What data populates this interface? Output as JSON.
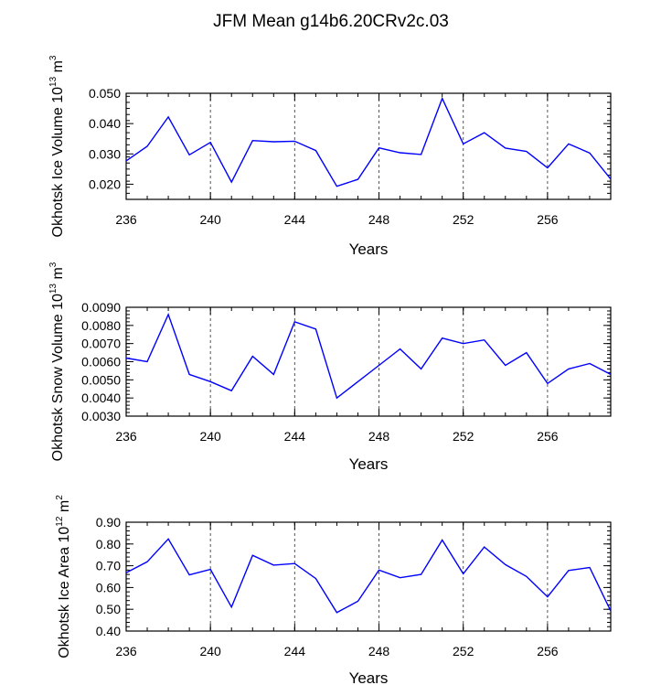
{
  "figure": {
    "title": "JFM Mean g14b6.20CRv2c.03",
    "colors": {
      "line": "#0000ff",
      "axes": "#000000",
      "grid": "#555555",
      "background": "#ffffff"
    }
  },
  "chart_data": [
    {
      "type": "line",
      "title": "JFM Mean g14b6.20CRv2c.03",
      "xlabel": "Years",
      "ylabel": {
        "text": "Okhotsk Ice Volume 10",
        "exp": "13",
        "unit": " m",
        "unit_exp": "3"
      },
      "xlim": [
        236,
        259
      ],
      "ylim": [
        0.015,
        0.05
      ],
      "xticks": [
        "236",
        "240",
        "244",
        "248",
        "252",
        "256"
      ],
      "yticks": [
        "0.020",
        "0.030",
        "0.040",
        "0.050"
      ],
      "x": [
        236,
        237,
        238,
        239,
        240,
        241,
        242,
        243,
        244,
        245,
        246,
        247,
        248,
        249,
        250,
        251,
        252,
        253,
        254,
        255,
        256,
        257,
        258,
        259
      ],
      "series": [
        {
          "name": "Okhotsk Ice Volume",
          "values": [
            0.0277,
            0.0325,
            0.0422,
            0.0297,
            0.0338,
            0.0207,
            0.0344,
            0.034,
            0.0342,
            0.0311,
            0.0193,
            0.0216,
            0.032,
            0.0304,
            0.0298,
            0.0483,
            0.0333,
            0.037,
            0.0319,
            0.0308,
            0.0254,
            0.0333,
            0.0303,
            0.0217
          ]
        }
      ]
    },
    {
      "type": "line",
      "xlabel": "Years",
      "ylabel": {
        "text": "Okhotsk Snow Volume 10",
        "exp": "13",
        "unit": " m",
        "unit_exp": "3"
      },
      "xlim": [
        236,
        259
      ],
      "ylim": [
        0.003,
        0.009
      ],
      "xticks": [
        "236",
        "240",
        "244",
        "248",
        "252",
        "256"
      ],
      "yticks": [
        "0.0030",
        "0.0040",
        "0.0050",
        "0.0060",
        "0.0070",
        "0.0080",
        "0.0090"
      ],
      "x": [
        236,
        237,
        238,
        239,
        240,
        241,
        242,
        243,
        244,
        245,
        246,
        247,
        248,
        249,
        250,
        251,
        252,
        253,
        254,
        255,
        256,
        257,
        258,
        259
      ],
      "series": [
        {
          "name": "Okhotsk Snow Volume",
          "values": [
            0.0062,
            0.006,
            0.0086,
            0.0053,
            0.0049,
            0.0044,
            0.0063,
            0.0053,
            0.0082,
            0.0078,
            0.004,
            0.0049,
            0.0058,
            0.0067,
            0.0056,
            0.0073,
            0.007,
            0.0072,
            0.0058,
            0.0065,
            0.0048,
            0.0056,
            0.0059,
            0.0053
          ]
        }
      ]
    },
    {
      "type": "line",
      "xlabel": "Years",
      "ylabel": {
        "text": "Okhotsk Ice Area 10",
        "exp": "12",
        "unit": " m",
        "unit_exp": "2"
      },
      "xlim": [
        236,
        259
      ],
      "ylim": [
        0.4,
        0.9
      ],
      "xticks": [
        "236",
        "240",
        "244",
        "248",
        "252",
        "256"
      ],
      "yticks": [
        "0.40",
        "0.50",
        "0.60",
        "0.70",
        "0.80",
        "0.90"
      ],
      "x": [
        236,
        237,
        238,
        239,
        240,
        241,
        242,
        243,
        244,
        245,
        246,
        247,
        248,
        249,
        250,
        251,
        252,
        253,
        254,
        255,
        256,
        257,
        258,
        259
      ],
      "series": [
        {
          "name": "Okhotsk Ice Area",
          "values": [
            0.668,
            0.718,
            0.823,
            0.658,
            0.683,
            0.51,
            0.748,
            0.703,
            0.71,
            0.641,
            0.485,
            0.537,
            0.68,
            0.645,
            0.66,
            0.818,
            0.663,
            0.786,
            0.705,
            0.651,
            0.557,
            0.678,
            0.692,
            0.492
          ]
        }
      ]
    }
  ]
}
